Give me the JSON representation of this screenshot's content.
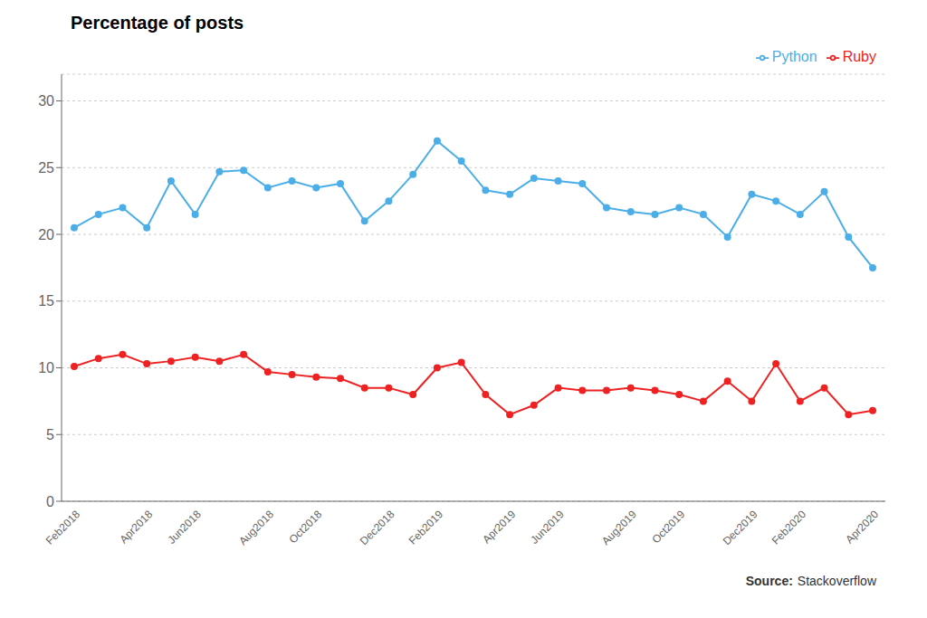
{
  "chart_data": {
    "type": "line",
    "title": "Percentage of posts",
    "categories": [
      "Feb2018",
      null,
      null,
      "Apr2018",
      null,
      "Jun2018",
      null,
      null,
      "Aug2018",
      null,
      "Oct2018",
      null,
      null,
      "Dec2018",
      null,
      "Feb2019",
      null,
      null,
      "Apr2019",
      null,
      "Jun2019",
      null,
      null,
      "Aug2019",
      null,
      "Oct2019",
      null,
      null,
      "Dec2019",
      null,
      "Feb2020",
      null,
      null,
      "Apr2020"
    ],
    "series": [
      {
        "name": "Python",
        "color": "#4BAEE8",
        "values": [
          20.5,
          21.5,
          22.0,
          20.5,
          24.0,
          21.5,
          24.7,
          24.8,
          23.5,
          24.0,
          23.5,
          23.8,
          21.0,
          22.5,
          24.5,
          27.0,
          25.5,
          23.3,
          23.0,
          24.2,
          24.0,
          23.8,
          22.0,
          21.7,
          21.5,
          22.0,
          21.5,
          19.8,
          23.0,
          22.5,
          21.5,
          23.2,
          19.8,
          17.5
        ]
      },
      {
        "name": "Ruby",
        "color": "#EE2222",
        "values": [
          10.1,
          10.7,
          11.0,
          10.3,
          10.5,
          10.8,
          10.5,
          11.0,
          9.7,
          9.5,
          9.3,
          9.2,
          8.5,
          8.5,
          8.0,
          10.0,
          10.4,
          8.0,
          6.5,
          7.2,
          8.5,
          8.3,
          8.3,
          8.5,
          8.3,
          8.0,
          7.5,
          9.0,
          7.5,
          10.3,
          7.5,
          8.5,
          6.5,
          6.8
        ]
      }
    ],
    "ylim": [
      0,
      32
    ],
    "yticks": [
      0,
      5,
      10,
      15,
      20,
      25,
      30
    ],
    "grid": true,
    "legend": "upper right",
    "marker": "circle",
    "annotations": [
      "Source:",
      "Stackoverflow"
    ]
  }
}
